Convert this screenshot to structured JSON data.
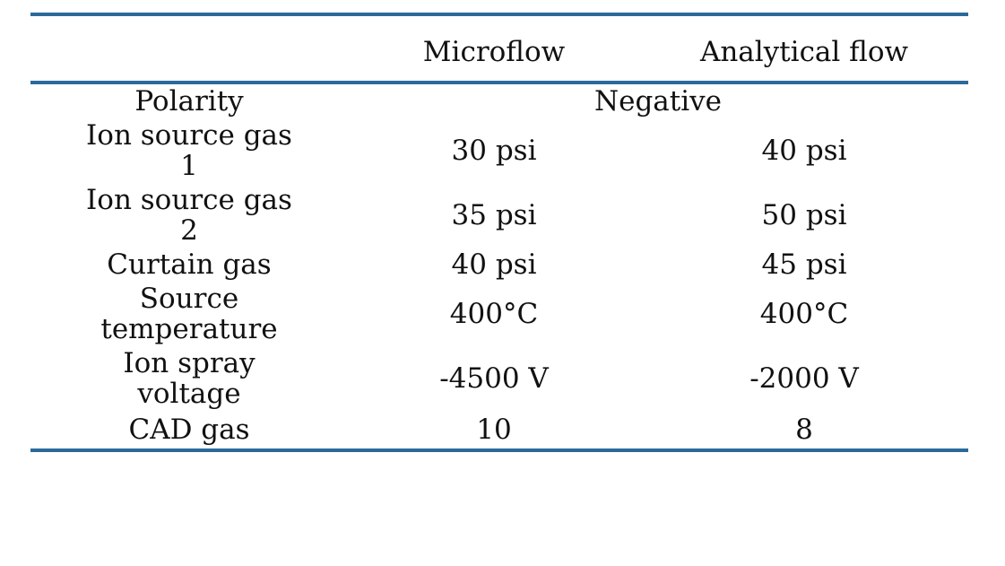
{
  "table": {
    "header": {
      "parameter": "",
      "col1": "Microflow",
      "col2": "Analytical flow"
    },
    "polarity": {
      "label": "Polarity",
      "value": "Negative"
    },
    "rows": [
      {
        "label_line1": "Ion source gas",
        "label_line2": "1",
        "microflow": "30 psi",
        "analytical": "40 psi"
      },
      {
        "label_line1": "Ion source gas",
        "label_line2": "2",
        "microflow": "35 psi",
        "analytical": "50 psi"
      },
      {
        "label_line1": "Curtain gas",
        "label_line2": "",
        "microflow": "40 psi",
        "analytical": "45 psi"
      },
      {
        "label_line1": "Source",
        "label_line2": "temperature",
        "microflow": "400°C",
        "analytical": "400°C"
      },
      {
        "label_line1": "Ion spray",
        "label_line2": "voltage",
        "microflow": "-4500 V",
        "analytical": "-2000 V"
      },
      {
        "label_line1": "CAD gas",
        "label_line2": "",
        "microflow": "10",
        "analytical": "8"
      }
    ]
  },
  "colors": {
    "rule": "#2a6a9b",
    "text": "#111111"
  }
}
